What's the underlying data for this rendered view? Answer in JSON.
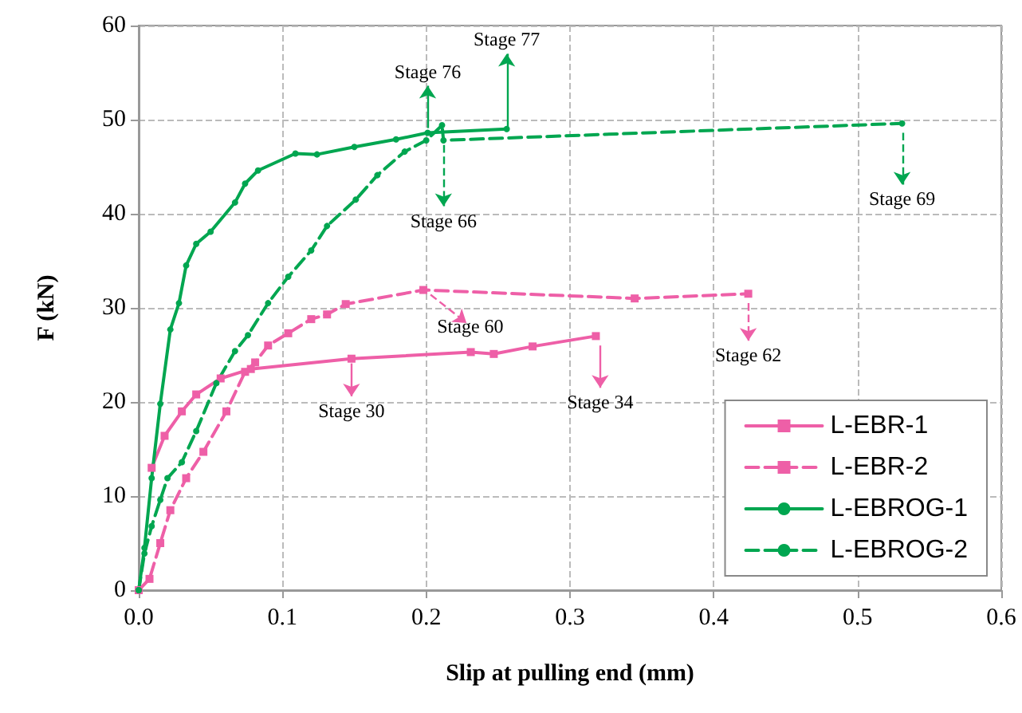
{
  "chart_data": {
    "type": "line",
    "xlabel": "Slip at pulling end (mm)",
    "ylabel": "F (kN)",
    "xlim": [
      0,
      0.6
    ],
    "xticks": [
      {
        "value": 0,
        "label": "0.0"
      },
      0.1,
      0.2,
      0.3,
      0.4,
      0.5,
      0.6
    ],
    "ylim": [
      0,
      60
    ],
    "yticks": [
      0,
      10,
      20,
      30,
      40,
      50,
      60
    ],
    "grid": true,
    "legend": "bottom right",
    "series": [
      {
        "name": "L-EBR-1",
        "color": "#ee5fa7",
        "marker": "square",
        "line_style": "solid",
        "x": [
          0,
          0.003,
          0.009,
          0.018,
          0.03,
          0.04,
          0.057,
          0.078,
          0.148,
          0.231,
          0.247,
          0.274,
          0.318
        ],
        "values": [
          0,
          null,
          13,
          16.4,
          19,
          20.8,
          22.5,
          23.5,
          24.6,
          25.3,
          25.1,
          25.9,
          27.0
        ]
      },
      {
        "name": "L-EBR-2",
        "color": "#ee5fa7",
        "marker": "square",
        "line_style": "dashed",
        "x": [
          0,
          0.0075,
          0.015,
          0.022,
          0.033,
          0.045,
          0.061,
          0.074,
          0.081,
          0.09,
          0.104,
          0.12,
          0.131,
          0.144,
          0.198,
          0.345,
          0.424
        ],
        "values": [
          0,
          1.2,
          5,
          8.5,
          11.9,
          14.7,
          19,
          23.2,
          24.2,
          26,
          27.3,
          28.8,
          29.3,
          30.4,
          31.9,
          31.0,
          31.5
        ]
      },
      {
        "name": "L-EBROG-1",
        "color": "#00a650",
        "marker": "circle",
        "line_style": "solid",
        "x": [
          0,
          0.004,
          0.009,
          0.015,
          0.022,
          0.028,
          0.033,
          0.04,
          0.05,
          0.067,
          0.074,
          0.083,
          0.109,
          0.124,
          0.15,
          0.179,
          0.201,
          0.256
        ],
        "values": [
          0,
          4.5,
          11.9,
          19.8,
          27.7,
          30.5,
          34.5,
          36.8,
          38.1,
          41.2,
          43.2,
          44.6,
          46.4,
          46.3,
          47.1,
          47.9,
          48.6,
          49.0
        ]
      },
      {
        "name": "L-EBROG-2",
        "color": "#00a650",
        "marker": "circle",
        "line_style": "dashed",
        "x": [
          0,
          0.004,
          0.009,
          0.015,
          0.02,
          0.03,
          0.04,
          0.054,
          0.067,
          0.076,
          0.09,
          0.104,
          0.12,
          0.131,
          0.151,
          0.166,
          0.185,
          0.2,
          0.211,
          0.212,
          0.531
        ],
        "values": [
          0,
          3.9,
          6.8,
          9.6,
          11.9,
          13.6,
          16.9,
          22,
          25.4,
          27.1,
          30.5,
          33.3,
          36.1,
          38.7,
          41.5,
          44.1,
          46.6,
          47.8,
          49.4,
          47.8,
          49.6
        ]
      }
    ],
    "annotations": [
      {
        "text": "Stage 77",
        "x": 0.256,
        "y": 49.0
      },
      {
        "text": "Stage 76",
        "x": 0.201,
        "y": 48.6
      },
      {
        "text": "Stage 66",
        "x": 0.212,
        "y": 47.8
      },
      {
        "text": "Stage 69",
        "x": 0.531,
        "y": 49.6
      },
      {
        "text": "Stage 60",
        "x": 0.198,
        "y": 31.9
      },
      {
        "text": "Stage 62",
        "x": 0.424,
        "y": 31.5
      },
      {
        "text": "Stage 30",
        "x": 0.148,
        "y": 24.6
      },
      {
        "text": "Stage 34",
        "x": 0.318,
        "y": 27.0
      }
    ]
  }
}
